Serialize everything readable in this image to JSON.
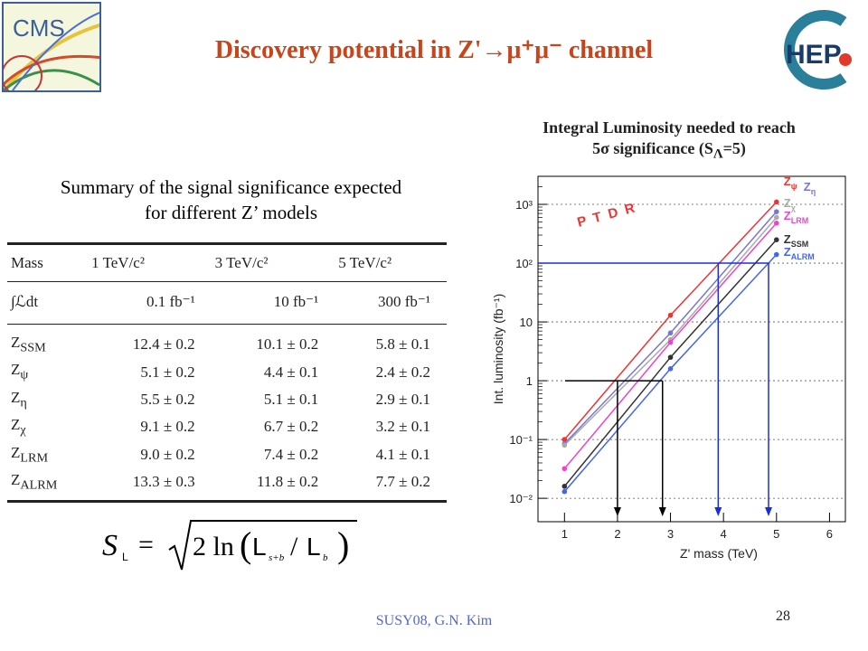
{
  "header": {
    "title": "Discovery potential in Z'→μ⁺μ⁻ channel",
    "cms_logo_text": "CMS",
    "hep_logo_text": "HEP"
  },
  "summary": {
    "line1": "Summary of the signal significance expected",
    "line2": "for different Z’ models"
  },
  "table": {
    "headers": [
      "Mass",
      "1 TeV/c²",
      "3 TeV/c²",
      "5 TeV/c²"
    ],
    "lumi_row": [
      "∫ℒdt",
      "0.1 fb⁻¹",
      "10 fb⁻¹",
      "300 fb⁻¹"
    ],
    "rows": [
      {
        "model": "Z",
        "sub": "SSM",
        "v": [
          "12.4 ± 0.2",
          "10.1 ± 0.2",
          "5.8 ± 0.1"
        ]
      },
      {
        "model": "Z",
        "sub": "ψ",
        "v": [
          "5.1 ± 0.2",
          "4.4 ± 0.1",
          "2.4 ± 0.2"
        ]
      },
      {
        "model": "Z",
        "sub": "η",
        "v": [
          "5.5 ± 0.2",
          "5.1 ± 0.1",
          "2.9 ± 0.1"
        ]
      },
      {
        "model": "Z",
        "sub": "χ",
        "v": [
          "9.1 ± 0.2",
          "6.7 ± 0.2",
          "3.2 ± 0.1"
        ]
      },
      {
        "model": "Z",
        "sub": "LRM",
        "v": [
          "9.0 ± 0.2",
          "7.4 ± 0.2",
          "4.1 ± 0.1"
        ]
      },
      {
        "model": "Z",
        "sub": "ALRM",
        "v": [
          "13.3 ± 0.3",
          "11.8 ± 0.2",
          "7.7 ± 0.2"
        ]
      }
    ]
  },
  "formula": {
    "lhs": "S",
    "lhs_sub": "L",
    "text": "= √ 2 ln( L s+b / L b )"
  },
  "chart_heading": {
    "line1": "Integral Luminosity needed to reach",
    "line2": "5σ significance (S",
    "line2_sub": "Λ",
    "line2_end": "=5)"
  },
  "chart_data": {
    "type": "line",
    "xlabel": "Z' mass (TeV)",
    "ylabel": "Int. luminosity (fb⁻¹)",
    "xlim": [
      0.5,
      6.3
    ],
    "ylim": [
      0.004,
      3000
    ],
    "log_y": true,
    "x_ticks": [
      1,
      2,
      3,
      4,
      5,
      6
    ],
    "y_ticks": [
      {
        "v": 0.01,
        "label": "10⁻²"
      },
      {
        "v": 0.1,
        "label": "10⁻¹"
      },
      {
        "v": 1,
        "label": "1"
      },
      {
        "v": 10,
        "label": "10"
      },
      {
        "v": 100,
        "label": "10²"
      },
      {
        "v": 1000,
        "label": "10³"
      }
    ],
    "grid": "dashed horizontal at decades",
    "annotation": "P T D R",
    "series": [
      {
        "name": "Zψ",
        "label_base": "Z",
        "label_sub": "ψ",
        "color": "#ee3333",
        "x": [
          1,
          3,
          5
        ],
        "y": [
          0.1,
          13,
          1100
        ]
      },
      {
        "name": "Zη",
        "label_base": "Z",
        "label_sub": "η",
        "color": "#7777cc",
        "x": [
          1,
          3,
          5
        ],
        "y": [
          0.085,
          6.5,
          750
        ]
      },
      {
        "name": "Zχ",
        "label_base": "Z",
        "label_sub": "χ",
        "color": "#aaaaaa",
        "x": [
          1,
          3,
          5
        ],
        "y": [
          0.08,
          5,
          600
        ]
      },
      {
        "name": "ZLRM",
        "label_base": "Z",
        "label_sub": "LRM",
        "color": "#ee44cc",
        "x": [
          1,
          3,
          5
        ],
        "y": [
          0.032,
          4.5,
          480
        ]
      },
      {
        "name": "ZSSM",
        "label_base": "Z",
        "label_sub": "SSM",
        "color": "#333333",
        "x": [
          1,
          3,
          5
        ],
        "y": [
          0.016,
          2.5,
          250
        ]
      },
      {
        "name": "ZALRM",
        "label_base": "Z",
        "label_sub": "ALRM",
        "color": "#4466ee",
        "x": [
          1,
          3,
          5
        ],
        "y": [
          0.013,
          1.6,
          140
        ]
      }
    ],
    "guide_arrows": [
      {
        "level": 1,
        "x_marks": [
          2.0,
          2.85
        ],
        "color": "#000000"
      },
      {
        "level": 100,
        "x_marks": [
          3.9,
          4.85
        ],
        "color": "#1a2ee0"
      }
    ]
  },
  "footer": {
    "text": "SUSY08, G.N. Kim",
    "page": "28"
  }
}
